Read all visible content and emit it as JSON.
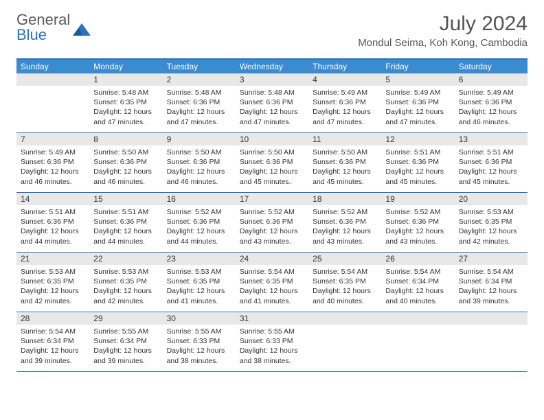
{
  "logo": {
    "line1": "General",
    "line2": "Blue"
  },
  "title": "July 2024",
  "location": "Mondul Seima, Koh Kong, Cambodia",
  "colors": {
    "header_bg": "#3a8bd0",
    "border": "#2a74b8",
    "daynum_bg": "#e8e8e8",
    "text": "#333333",
    "logo_gray": "#5a5a5a",
    "logo_blue": "#2a74b8"
  },
  "weekdays": [
    "Sunday",
    "Monday",
    "Tuesday",
    "Wednesday",
    "Thursday",
    "Friday",
    "Saturday"
  ],
  "weeks": [
    [
      {
        "n": "",
        "sunrise": "",
        "sunset": "",
        "daylight": ""
      },
      {
        "n": "1",
        "sunrise": "Sunrise: 5:48 AM",
        "sunset": "Sunset: 6:35 PM",
        "daylight": "Daylight: 12 hours and 47 minutes."
      },
      {
        "n": "2",
        "sunrise": "Sunrise: 5:48 AM",
        "sunset": "Sunset: 6:36 PM",
        "daylight": "Daylight: 12 hours and 47 minutes."
      },
      {
        "n": "3",
        "sunrise": "Sunrise: 5:48 AM",
        "sunset": "Sunset: 6:36 PM",
        "daylight": "Daylight: 12 hours and 47 minutes."
      },
      {
        "n": "4",
        "sunrise": "Sunrise: 5:49 AM",
        "sunset": "Sunset: 6:36 PM",
        "daylight": "Daylight: 12 hours and 47 minutes."
      },
      {
        "n": "5",
        "sunrise": "Sunrise: 5:49 AM",
        "sunset": "Sunset: 6:36 PM",
        "daylight": "Daylight: 12 hours and 47 minutes."
      },
      {
        "n": "6",
        "sunrise": "Sunrise: 5:49 AM",
        "sunset": "Sunset: 6:36 PM",
        "daylight": "Daylight: 12 hours and 46 minutes."
      }
    ],
    [
      {
        "n": "7",
        "sunrise": "Sunrise: 5:49 AM",
        "sunset": "Sunset: 6:36 PM",
        "daylight": "Daylight: 12 hours and 46 minutes."
      },
      {
        "n": "8",
        "sunrise": "Sunrise: 5:50 AM",
        "sunset": "Sunset: 6:36 PM",
        "daylight": "Daylight: 12 hours and 46 minutes."
      },
      {
        "n": "9",
        "sunrise": "Sunrise: 5:50 AM",
        "sunset": "Sunset: 6:36 PM",
        "daylight": "Daylight: 12 hours and 46 minutes."
      },
      {
        "n": "10",
        "sunrise": "Sunrise: 5:50 AM",
        "sunset": "Sunset: 6:36 PM",
        "daylight": "Daylight: 12 hours and 45 minutes."
      },
      {
        "n": "11",
        "sunrise": "Sunrise: 5:50 AM",
        "sunset": "Sunset: 6:36 PM",
        "daylight": "Daylight: 12 hours and 45 minutes."
      },
      {
        "n": "12",
        "sunrise": "Sunrise: 5:51 AM",
        "sunset": "Sunset: 6:36 PM",
        "daylight": "Daylight: 12 hours and 45 minutes."
      },
      {
        "n": "13",
        "sunrise": "Sunrise: 5:51 AM",
        "sunset": "Sunset: 6:36 PM",
        "daylight": "Daylight: 12 hours and 45 minutes."
      }
    ],
    [
      {
        "n": "14",
        "sunrise": "Sunrise: 5:51 AM",
        "sunset": "Sunset: 6:36 PM",
        "daylight": "Daylight: 12 hours and 44 minutes."
      },
      {
        "n": "15",
        "sunrise": "Sunrise: 5:51 AM",
        "sunset": "Sunset: 6:36 PM",
        "daylight": "Daylight: 12 hours and 44 minutes."
      },
      {
        "n": "16",
        "sunrise": "Sunrise: 5:52 AM",
        "sunset": "Sunset: 6:36 PM",
        "daylight": "Daylight: 12 hours and 44 minutes."
      },
      {
        "n": "17",
        "sunrise": "Sunrise: 5:52 AM",
        "sunset": "Sunset: 6:36 PM",
        "daylight": "Daylight: 12 hours and 43 minutes."
      },
      {
        "n": "18",
        "sunrise": "Sunrise: 5:52 AM",
        "sunset": "Sunset: 6:36 PM",
        "daylight": "Daylight: 12 hours and 43 minutes."
      },
      {
        "n": "19",
        "sunrise": "Sunrise: 5:52 AM",
        "sunset": "Sunset: 6:36 PM",
        "daylight": "Daylight: 12 hours and 43 minutes."
      },
      {
        "n": "20",
        "sunrise": "Sunrise: 5:53 AM",
        "sunset": "Sunset: 6:35 PM",
        "daylight": "Daylight: 12 hours and 42 minutes."
      }
    ],
    [
      {
        "n": "21",
        "sunrise": "Sunrise: 5:53 AM",
        "sunset": "Sunset: 6:35 PM",
        "daylight": "Daylight: 12 hours and 42 minutes."
      },
      {
        "n": "22",
        "sunrise": "Sunrise: 5:53 AM",
        "sunset": "Sunset: 6:35 PM",
        "daylight": "Daylight: 12 hours and 42 minutes."
      },
      {
        "n": "23",
        "sunrise": "Sunrise: 5:53 AM",
        "sunset": "Sunset: 6:35 PM",
        "daylight": "Daylight: 12 hours and 41 minutes."
      },
      {
        "n": "24",
        "sunrise": "Sunrise: 5:54 AM",
        "sunset": "Sunset: 6:35 PM",
        "daylight": "Daylight: 12 hours and 41 minutes."
      },
      {
        "n": "25",
        "sunrise": "Sunrise: 5:54 AM",
        "sunset": "Sunset: 6:35 PM",
        "daylight": "Daylight: 12 hours and 40 minutes."
      },
      {
        "n": "26",
        "sunrise": "Sunrise: 5:54 AM",
        "sunset": "Sunset: 6:34 PM",
        "daylight": "Daylight: 12 hours and 40 minutes."
      },
      {
        "n": "27",
        "sunrise": "Sunrise: 5:54 AM",
        "sunset": "Sunset: 6:34 PM",
        "daylight": "Daylight: 12 hours and 39 minutes."
      }
    ],
    [
      {
        "n": "28",
        "sunrise": "Sunrise: 5:54 AM",
        "sunset": "Sunset: 6:34 PM",
        "daylight": "Daylight: 12 hours and 39 minutes."
      },
      {
        "n": "29",
        "sunrise": "Sunrise: 5:55 AM",
        "sunset": "Sunset: 6:34 PM",
        "daylight": "Daylight: 12 hours and 39 minutes."
      },
      {
        "n": "30",
        "sunrise": "Sunrise: 5:55 AM",
        "sunset": "Sunset: 6:33 PM",
        "daylight": "Daylight: 12 hours and 38 minutes."
      },
      {
        "n": "31",
        "sunrise": "Sunrise: 5:55 AM",
        "sunset": "Sunset: 6:33 PM",
        "daylight": "Daylight: 12 hours and 38 minutes."
      },
      {
        "n": "",
        "sunrise": "",
        "sunset": "",
        "daylight": ""
      },
      {
        "n": "",
        "sunrise": "",
        "sunset": "",
        "daylight": ""
      },
      {
        "n": "",
        "sunrise": "",
        "sunset": "",
        "daylight": ""
      }
    ]
  ]
}
